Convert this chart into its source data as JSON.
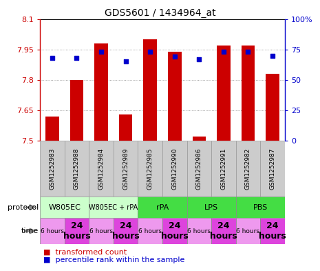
{
  "title": "GDS5601 / 1434964_at",
  "samples": [
    "GSM1252983",
    "GSM1252988",
    "GSM1252984",
    "GSM1252989",
    "GSM1252985",
    "GSM1252990",
    "GSM1252986",
    "GSM1252991",
    "GSM1252982",
    "GSM1252987"
  ],
  "bar_values": [
    7.62,
    7.8,
    7.98,
    7.63,
    8.0,
    7.94,
    7.52,
    7.97,
    7.97,
    7.83
  ],
  "dot_values": [
    68,
    68,
    73,
    65,
    73,
    69,
    67,
    73,
    73,
    70
  ],
  "ymin": 7.5,
  "ymax": 8.1,
  "y2min": 0,
  "y2max": 100,
  "yticks": [
    7.5,
    7.65,
    7.8,
    7.95,
    8.1
  ],
  "ytick_labels": [
    "7.5",
    "7.65",
    "7.8",
    "7.95",
    "8.1"
  ],
  "y2ticks": [
    0,
    25,
    50,
    75,
    100
  ],
  "y2tick_labels": [
    "0",
    "25",
    "50",
    "75",
    "100%"
  ],
  "bar_color": "#cc0000",
  "dot_color": "#0000cc",
  "bar_width": 0.55,
  "protocols": [
    {
      "label": "W805EC",
      "span": [
        0,
        2
      ],
      "color": "#ccffcc"
    },
    {
      "label": "W805EC + rPA",
      "span": [
        2,
        4
      ],
      "color": "#ccffcc"
    },
    {
      "label": "rPA",
      "span": [
        4,
        6
      ],
      "color": "#44dd44"
    },
    {
      "label": "LPS",
      "span": [
        6,
        8
      ],
      "color": "#44dd44"
    },
    {
      "label": "PBS",
      "span": [
        8,
        10
      ],
      "color": "#44dd44"
    }
  ],
  "times": [
    {
      "label": "6 hours",
      "span": [
        0,
        1
      ],
      "color": "#ee99ee",
      "fontsize": 6.5,
      "bold": false
    },
    {
      "label": "24\nhours",
      "span": [
        1,
        2
      ],
      "color": "#dd44dd",
      "fontsize": 9,
      "bold": true
    },
    {
      "label": "6 hours",
      "span": [
        2,
        3
      ],
      "color": "#ee99ee",
      "fontsize": 6.5,
      "bold": false
    },
    {
      "label": "24\nhours",
      "span": [
        3,
        4
      ],
      "color": "#dd44dd",
      "fontsize": 9,
      "bold": true
    },
    {
      "label": "6 hours",
      "span": [
        4,
        5
      ],
      "color": "#ee99ee",
      "fontsize": 6.5,
      "bold": false
    },
    {
      "label": "24\nhours",
      "span": [
        5,
        6
      ],
      "color": "#dd44dd",
      "fontsize": 9,
      "bold": true
    },
    {
      "label": "6 hours",
      "span": [
        6,
        7
      ],
      "color": "#ee99ee",
      "fontsize": 6.5,
      "bold": false
    },
    {
      "label": "24\nhours",
      "span": [
        7,
        8
      ],
      "color": "#dd44dd",
      "fontsize": 9,
      "bold": true
    },
    {
      "label": "6 hours",
      "span": [
        8,
        9
      ],
      "color": "#ee99ee",
      "fontsize": 6.5,
      "bold": false
    },
    {
      "label": "24\nhours",
      "span": [
        9,
        10
      ],
      "color": "#dd44dd",
      "fontsize": 9,
      "bold": true
    }
  ],
  "bar_color_legend": "#cc0000",
  "dot_color_legend": "#0000cc",
  "xlabel_color": "#cc0000",
  "y2label_color": "#0000cc",
  "grid_color": "#888888",
  "sample_bg_color": "#cccccc",
  "sample_border_color": "#999999"
}
